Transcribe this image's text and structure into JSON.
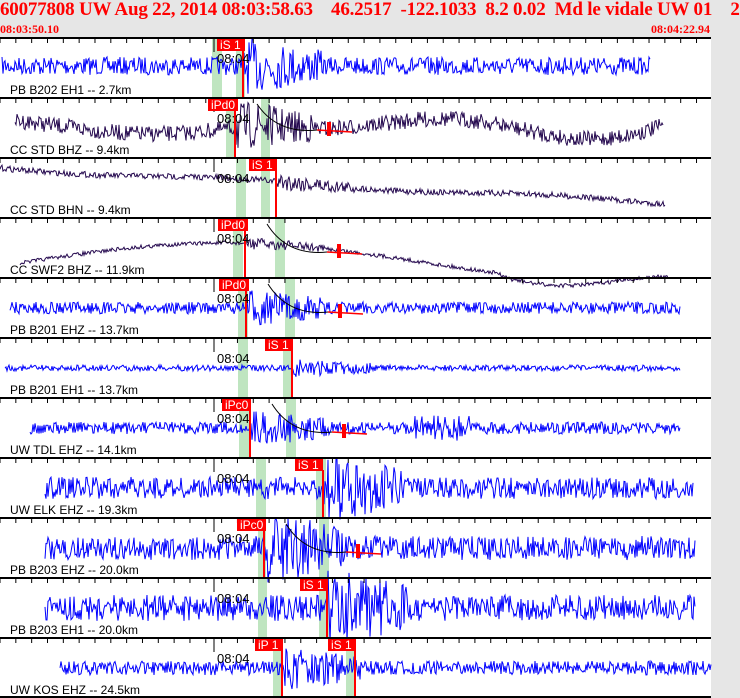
{
  "header": {
    "title": "60077808 UW Aug 22, 2014 08:03:58.63    46.2517  -122.1033  8.2 0.02  Md le vidale UW 01    2",
    "start_time": "08:03:50.10",
    "end_time": "08:04:22.94"
  },
  "minute_label": "08:04",
  "colors": {
    "short_period": "#0000ff",
    "broadband": "#24084e",
    "pick": "#ff0000",
    "window": "#bfe5c0"
  },
  "traces": [
    {
      "label": "PB B202 EH1 -- 2.7km",
      "picks": [
        "iS 1"
      ]
    },
    {
      "label": "CC STD BHZ -- 9.4km",
      "picks": [
        "iPd0"
      ]
    },
    {
      "label": "CC STD BHN -- 9.4km",
      "picks": [
        "iS 1"
      ]
    },
    {
      "label": "CC SWF2 BHZ -- 11.9km",
      "picks": [
        "iPd0"
      ]
    },
    {
      "label": "PB B201 EHZ -- 13.7km",
      "picks": [
        "iPd0"
      ]
    },
    {
      "label": "PB B201 EH1 -- 13.7km",
      "picks": [
        "iS 1"
      ]
    },
    {
      "label": "UW TDL EHZ -- 14.1km",
      "picks": [
        "iPc0"
      ]
    },
    {
      "label": "UW ELK EHZ -- 19.3km",
      "picks": [
        "iS 1"
      ]
    },
    {
      "label": "PB B203 EHZ -- 20.0km",
      "picks": [
        "iPc0"
      ]
    },
    {
      "label": "PB B203 EH1 -- 20.0km",
      "picks": [
        "iS 1"
      ]
    },
    {
      "label": "UW KOS EHZ -- 24.5km",
      "picks": [
        "iP 1",
        "iS 1"
      ]
    }
  ]
}
